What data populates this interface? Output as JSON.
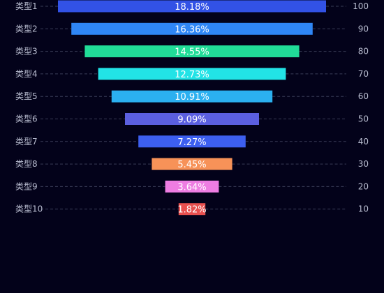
{
  "chart_data": {
    "type": "bar",
    "subtype": "funnel",
    "categories": [
      "类型1",
      "类型2",
      "类型3",
      "类型4",
      "类型5",
      "类型6",
      "类型7",
      "类型8",
      "类型9",
      "类型10"
    ],
    "values": [
      100,
      90,
      80,
      70,
      60,
      50,
      40,
      30,
      20,
      10
    ],
    "percent_labels": [
      "18.18%",
      "16.36%",
      "14.55%",
      "12.73%",
      "10.91%",
      "9.09%",
      "7.27%",
      "5.45%",
      "3.64%",
      "1.82%"
    ],
    "colors": [
      "#3252e6",
      "#2f86f6",
      "#21dc98",
      "#22e3e6",
      "#2bb0f0",
      "#5b5fe0",
      "#3d5ff0",
      "#f79258",
      "#ee7de2",
      "#e8504f"
    ],
    "max": 100,
    "grid": true,
    "gridline_style": "dashed",
    "label_color": "#b9bdd0",
    "background": "#03021a"
  }
}
